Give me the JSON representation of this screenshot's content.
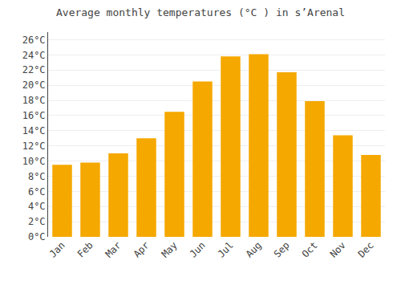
{
  "chart_data": {
    "type": "bar",
    "title": "Average monthly temperatures (°C ) in s’Arenal",
    "categories": [
      "Jan",
      "Feb",
      "Mar",
      "Apr",
      "May",
      "Jun",
      "Jul",
      "Aug",
      "Sep",
      "Oct",
      "Nov",
      "Dec"
    ],
    "values": [
      9.5,
      9.8,
      11.0,
      13.0,
      16.5,
      20.5,
      23.8,
      24.1,
      21.7,
      17.9,
      13.4,
      10.8
    ],
    "color": "#F5A800",
    "ylim": [
      0,
      27
    ],
    "yticks": [
      {
        "value": 0,
        "label": "0°C"
      },
      {
        "value": 2,
        "label": "2°C"
      },
      {
        "value": 4,
        "label": "4°C"
      },
      {
        "value": 6,
        "label": "6°C"
      },
      {
        "value": 8,
        "label": "8°C"
      },
      {
        "value": 10,
        "label": "10°C"
      },
      {
        "value": 12,
        "label": "12°C"
      },
      {
        "value": 14,
        "label": "14°C"
      },
      {
        "value": 16,
        "label": "16°C"
      },
      {
        "value": 18,
        "label": "18°C"
      },
      {
        "value": 20,
        "label": "20°C"
      },
      {
        "value": 22,
        "label": "22°C"
      },
      {
        "value": 24,
        "label": "24°C"
      },
      {
        "value": 26,
        "label": "26°C"
      }
    ],
    "grid": true
  }
}
